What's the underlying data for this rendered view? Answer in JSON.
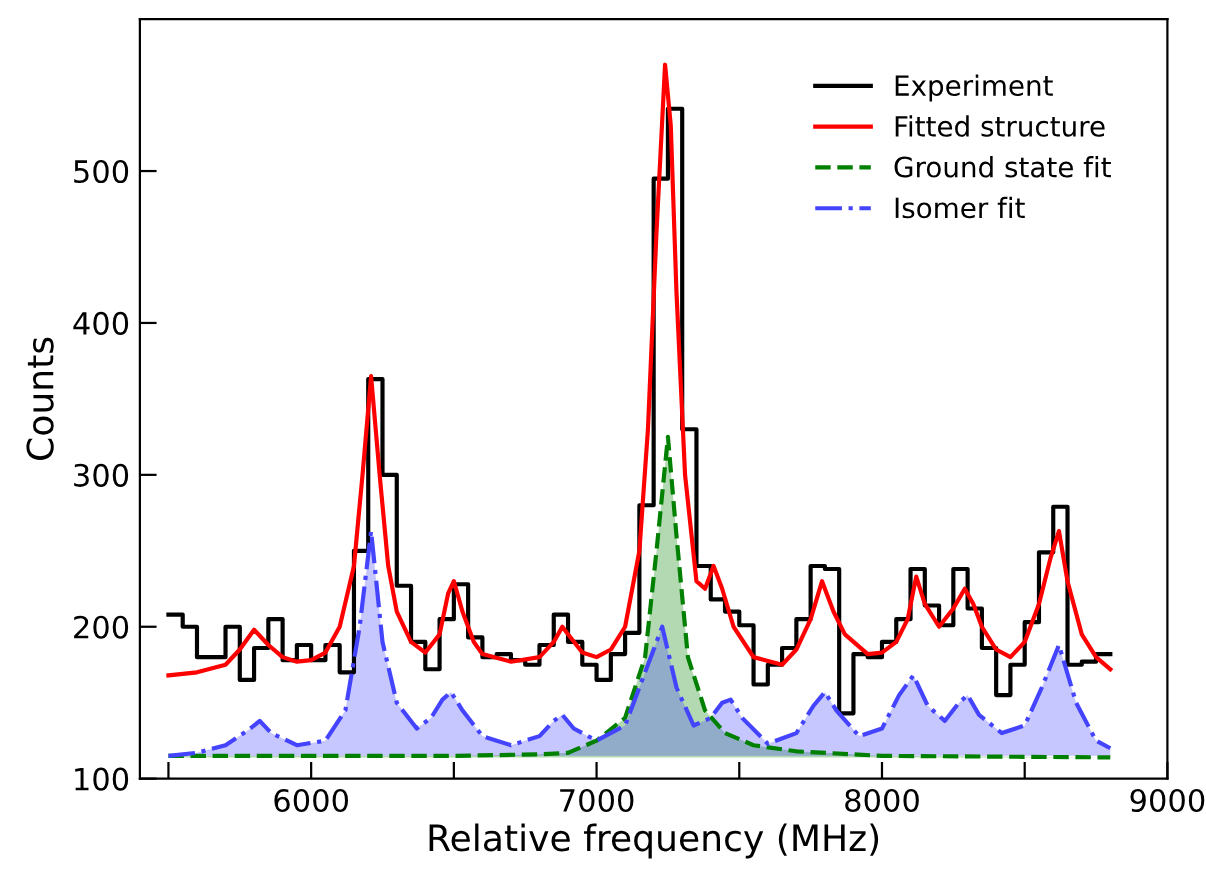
{
  "chart_data": {
    "type": "line",
    "xlabel": "Relative frequency (MHz)",
    "ylabel": "Counts",
    "xlim": [
      5400,
      9000
    ],
    "ylim": [
      100,
      600
    ],
    "xticks": [
      {
        "value": 5500,
        "label": null
      },
      6000,
      {
        "value": 6500,
        "label": null
      },
      7000,
      {
        "value": 7500,
        "label": null
      },
      8000,
      {
        "value": 8500,
        "label": null
      },
      9000
    ],
    "yticks": [
      100,
      200,
      300,
      400,
      500
    ],
    "grid": false,
    "legend": "top right",
    "series": [
      {
        "name": "Experiment",
        "type": "step",
        "color": "#000000",
        "line_style": "solid",
        "x": [
          5500,
          5550,
          5600,
          5650,
          5700,
          5750,
          5800,
          5850,
          5900,
          5950,
          6000,
          6050,
          6100,
          6150,
          6200,
          6250,
          6300,
          6350,
          6400,
          6450,
          6500,
          6550,
          6600,
          6650,
          6700,
          6750,
          6800,
          6850,
          6900,
          6950,
          7000,
          7050,
          7100,
          7150,
          7200,
          7250,
          7300,
          7350,
          7400,
          7450,
          7500,
          7550,
          7600,
          7650,
          7700,
          7750,
          7800,
          7850,
          7900,
          7950,
          8000,
          8050,
          8100,
          8150,
          8200,
          8250,
          8300,
          8350,
          8400,
          8450,
          8500,
          8550,
          8600,
          8650,
          8700,
          8750,
          8800
        ],
        "values": [
          208,
          200,
          180,
          180,
          200,
          165,
          186,
          205,
          178,
          188,
          178,
          188,
          170,
          250,
          363,
          300,
          227,
          190,
          172,
          205,
          228,
          193,
          180,
          182,
          178,
          175,
          188,
          208,
          190,
          175,
          165,
          182,
          196,
          280,
          495,
          541,
          330,
          240,
          218,
          210,
          201,
          162,
          175,
          186,
          205,
          240,
          238,
          143,
          182,
          180,
          190,
          205,
          238,
          214,
          201,
          238,
          212,
          186,
          155,
          175,
          203,
          249,
          279,
          175,
          177,
          182,
          182
        ]
      },
      {
        "name": "Fitted structure",
        "color": "#ff0000",
        "line_style": "solid",
        "x": [
          5500,
          5600,
          5700,
          5750,
          5800,
          5850,
          5900,
          5950,
          6000,
          6050,
          6100,
          6150,
          6180,
          6210,
          6240,
          6270,
          6300,
          6350,
          6400,
          6450,
          6480,
          6500,
          6530,
          6570,
          6600,
          6700,
          6800,
          6850,
          6880,
          6900,
          6950,
          7000,
          7050,
          7100,
          7150,
          7180,
          7210,
          7240,
          7260,
          7280,
          7310,
          7350,
          7380,
          7410,
          7440,
          7480,
          7550,
          7650,
          7700,
          7750,
          7790,
          7830,
          7870,
          7950,
          8000,
          8050,
          8090,
          8120,
          8150,
          8200,
          8250,
          8290,
          8320,
          8350,
          8400,
          8450,
          8500,
          8550,
          8590,
          8620,
          8650,
          8700,
          8750,
          8800
        ],
        "values": [
          168,
          170,
          175,
          185,
          198,
          188,
          180,
          177,
          178,
          183,
          200,
          240,
          300,
          365,
          300,
          240,
          210,
          190,
          183,
          195,
          222,
          230,
          210,
          190,
          182,
          177,
          180,
          190,
          200,
          195,
          183,
          180,
          185,
          200,
          250,
          330,
          460,
          570,
          530,
          420,
          300,
          230,
          225,
          240,
          225,
          200,
          180,
          175,
          185,
          205,
          230,
          210,
          195,
          182,
          183,
          190,
          205,
          233,
          215,
          200,
          212,
          225,
          215,
          200,
          185,
          180,
          190,
          215,
          245,
          263,
          230,
          195,
          180,
          172
        ]
      },
      {
        "name": "Ground state fit",
        "type": "area",
        "color": "#008000",
        "line_style": "dashed",
        "x": [
          5500,
          6000,
          6500,
          6800,
          6900,
          7000,
          7100,
          7170,
          7210,
          7250,
          7280,
          7320,
          7380,
          7450,
          7550,
          7700,
          8000,
          8800
        ],
        "values": [
          115,
          115,
          115,
          116,
          117,
          125,
          140,
          180,
          250,
          325,
          260,
          180,
          145,
          130,
          122,
          118,
          115,
          114
        ]
      },
      {
        "name": "Isomer fit",
        "type": "area",
        "color": "#4444ff",
        "line_style": "dashdot",
        "x": [
          5500,
          5600,
          5700,
          5780,
          5820,
          5860,
          5950,
          6050,
          6120,
          6170,
          6210,
          6250,
          6300,
          6370,
          6420,
          6460,
          6490,
          6530,
          6600,
          6700,
          6800,
          6850,
          6880,
          6920,
          7000,
          7100,
          7170,
          7230,
          7280,
          7340,
          7400,
          7440,
          7470,
          7510,
          7600,
          7700,
          7760,
          7800,
          7840,
          7920,
          8000,
          8060,
          8110,
          8160,
          8220,
          8270,
          8300,
          8340,
          8420,
          8500,
          8560,
          8620,
          8680,
          8750,
          8800
        ],
        "values": [
          115,
          117,
          122,
          132,
          138,
          130,
          122,
          125,
          145,
          200,
          263,
          190,
          150,
          133,
          140,
          152,
          157,
          145,
          128,
          122,
          128,
          138,
          142,
          133,
          125,
          135,
          170,
          200,
          160,
          135,
          140,
          150,
          152,
          140,
          123,
          130,
          148,
          157,
          145,
          128,
          133,
          155,
          168,
          148,
          138,
          150,
          155,
          142,
          130,
          135,
          160,
          188,
          150,
          125,
          120
        ]
      }
    ]
  }
}
